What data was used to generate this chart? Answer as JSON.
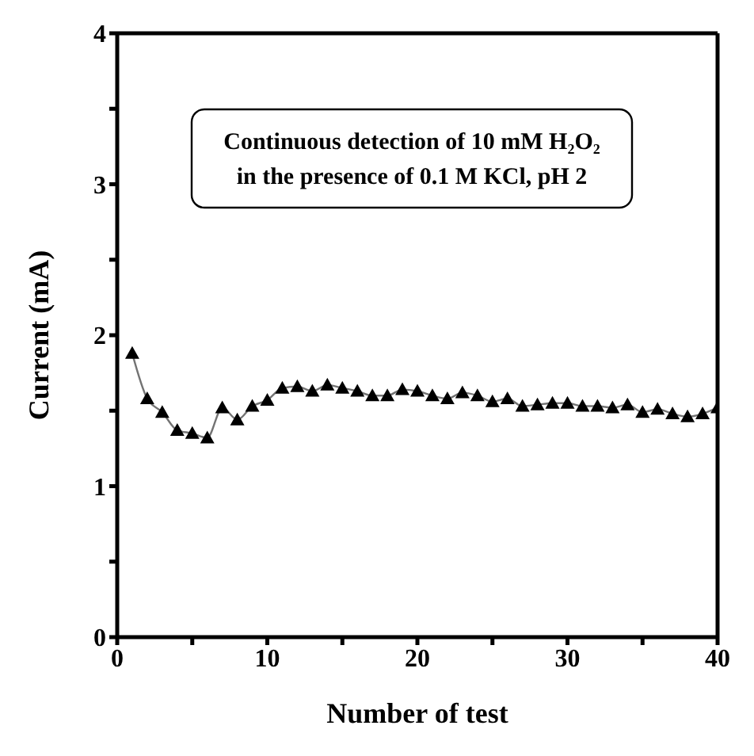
{
  "chart_data": {
    "type": "line",
    "xlabel": "Number of test",
    "ylabel": "Current (mA)",
    "annotations": [
      "Continuous detection of 10 mM H₂O₂\nin the presence of 0.1 M KCl, pH 2"
    ],
    "x": [
      1,
      2,
      3,
      4,
      5,
      6,
      7,
      8,
      9,
      10,
      11,
      12,
      13,
      14,
      15,
      16,
      17,
      18,
      19,
      20,
      21,
      22,
      23,
      24,
      25,
      26,
      27,
      28,
      29,
      30,
      31,
      32,
      33,
      34,
      35,
      36,
      37,
      38,
      39,
      40
    ],
    "series": [
      {
        "color": "#000000",
        "values": [
          1.88,
          1.58,
          1.49,
          1.37,
          1.35,
          1.32,
          1.52,
          1.44,
          1.53,
          1.57,
          1.65,
          1.66,
          1.63,
          1.67,
          1.65,
          1.63,
          1.6,
          1.6,
          1.64,
          1.63,
          1.6,
          1.58,
          1.62,
          1.6,
          1.56,
          1.58,
          1.53,
          1.54,
          1.55,
          1.55,
          1.53,
          1.53,
          1.52,
          1.54,
          1.49,
          1.51,
          1.48,
          1.46,
          1.48,
          1.52
        ]
      }
    ],
    "xlim": [
      0,
      40
    ],
    "xticks": [
      0,
      {
        "value": 5,
        "label": null
      },
      10,
      {
        "value": 15,
        "label": null
      },
      20,
      {
        "value": 25,
        "label": null
      },
      30,
      {
        "value": 35,
        "label": null
      },
      40
    ],
    "ylim": [
      0,
      4
    ],
    "yticks": [
      0,
      {
        "value": 0.5,
        "label": null
      },
      1,
      {
        "value": 1.5,
        "label": null
      },
      2,
      {
        "value": 2.5,
        "label": null
      },
      3,
      {
        "value": 3.5,
        "label": null
      },
      4
    ],
    "marker": "triangle",
    "grid": false
  }
}
